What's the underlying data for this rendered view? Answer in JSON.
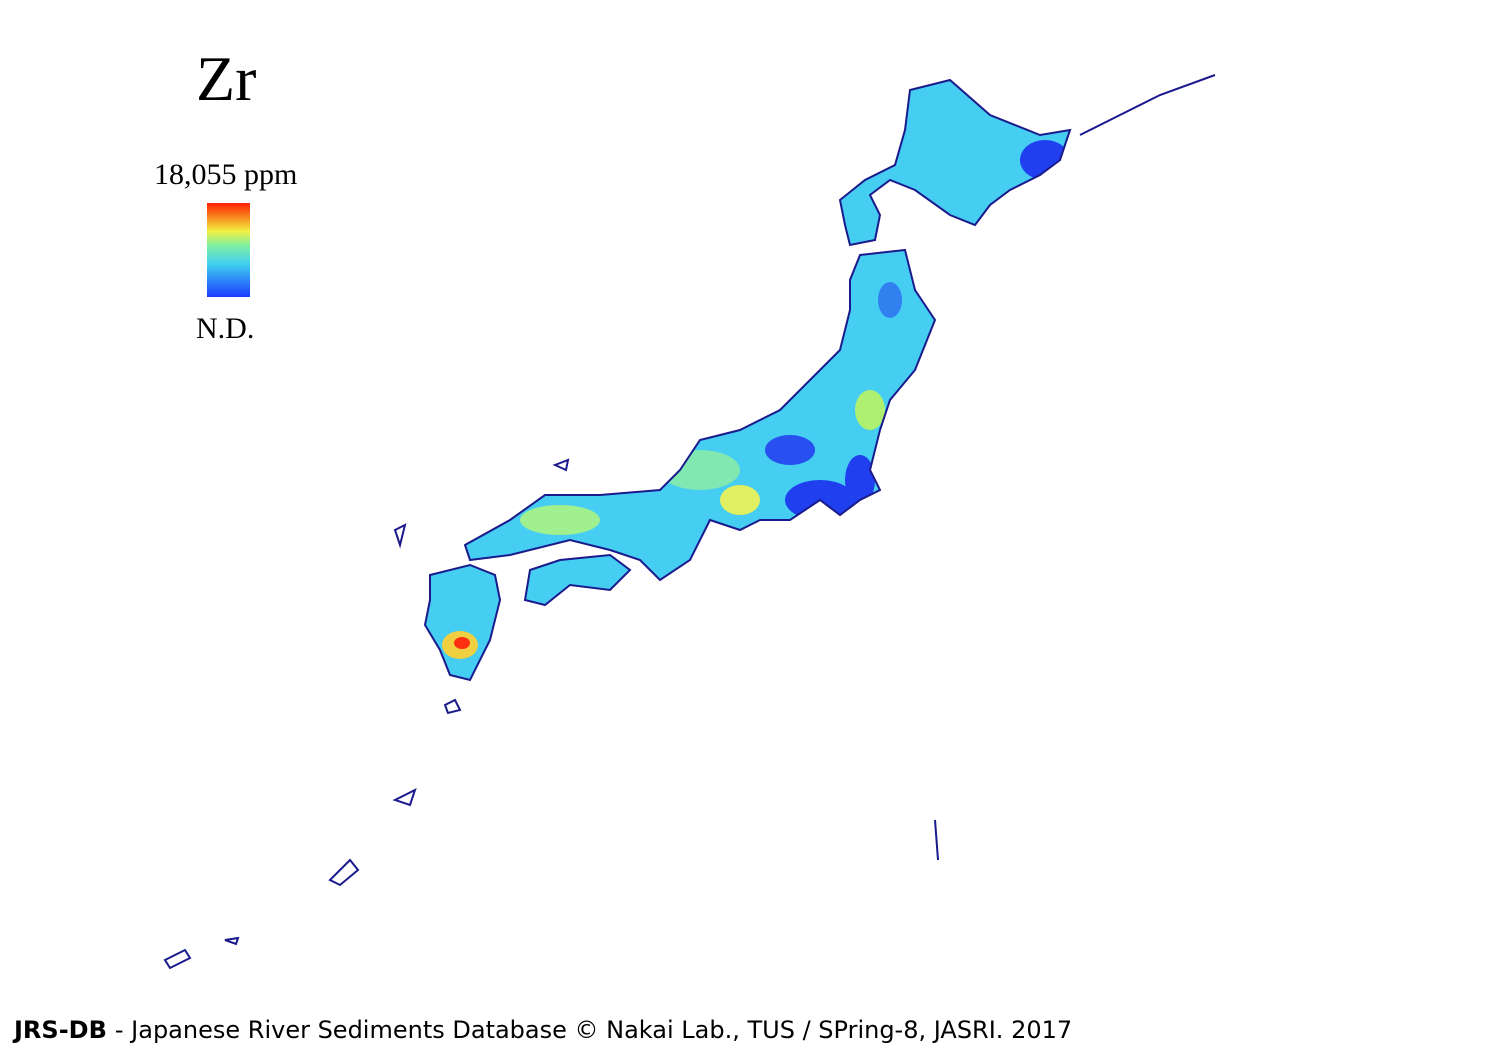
{
  "title": "Zr",
  "legend": {
    "max_label": "18,055 ppm",
    "min_label": "N.D."
  },
  "footer": {
    "brand": "JRS-DB",
    "text": "- Japanese River Sediments Database © Nakai Lab., TUS / SPring-8, JASRI. 2017"
  }
}
